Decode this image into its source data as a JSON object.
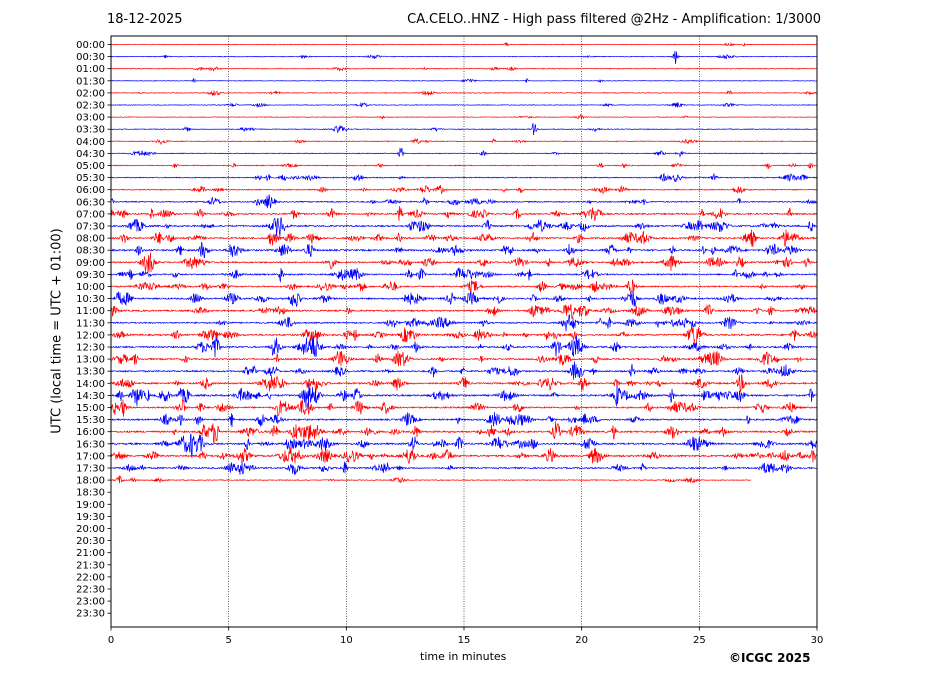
{
  "header": {
    "date": "18-12-2025",
    "title": "CA.CELO..HNZ - High pass filtered @2Hz - Amplification: 1/3000"
  },
  "footer": {
    "copyright": "©ICGC 2025"
  },
  "chart_data": {
    "type": "line",
    "chart_kind": "seismogram helicorder",
    "xlabel": "time in minutes",
    "ylabel": "UTC (local time = UTC + 01:00)",
    "xlim": [
      0,
      30
    ],
    "x_ticks": [
      0,
      5,
      10,
      15,
      20,
      25,
      30
    ],
    "vertical_gridlines_at": [
      5,
      10,
      15,
      20,
      25
    ],
    "y_tick_labels": [
      "00:00",
      "00:30",
      "01:00",
      "01:30",
      "02:00",
      "02:30",
      "03:00",
      "03:30",
      "04:00",
      "04:30",
      "05:00",
      "05:30",
      "06:00",
      "06:30",
      "07:00",
      "07:30",
      "08:00",
      "08:30",
      "09:00",
      "09:30",
      "10:00",
      "10:30",
      "11:00",
      "11:30",
      "12:00",
      "12:30",
      "13:00",
      "13:30",
      "14:00",
      "14:30",
      "15:00",
      "15:30",
      "16:00",
      "16:30",
      "17:00",
      "17:30",
      "18:00",
      "18:30",
      "19:00",
      "19:30",
      "20:00",
      "20:30",
      "21:00",
      "21:30",
      "22:00",
      "22:30",
      "23:00",
      "23:30"
    ],
    "trace_colors": [
      "#ff0000",
      "#0000ff"
    ],
    "last_trace_end_minute": 27.2,
    "series": [
      {
        "start": "00:00",
        "activity": 0.03,
        "end_minute": 30
      },
      {
        "start": "00:30",
        "activity": 0.08,
        "end_minute": 30
      },
      {
        "start": "01:00",
        "activity": 0.1,
        "end_minute": 30
      },
      {
        "start": "01:30",
        "activity": 0.04,
        "end_minute": 30
      },
      {
        "start": "02:00",
        "activity": 0.1,
        "end_minute": 30
      },
      {
        "start": "02:30",
        "activity": 0.1,
        "end_minute": 30
      },
      {
        "start": "03:00",
        "activity": 0.04,
        "end_minute": 30
      },
      {
        "start": "03:30",
        "activity": 0.12,
        "end_minute": 30
      },
      {
        "start": "04:00",
        "activity": 0.12,
        "end_minute": 30
      },
      {
        "start": "04:30",
        "activity": 0.14,
        "end_minute": 30
      },
      {
        "start": "05:00",
        "activity": 0.2,
        "end_minute": 30
      },
      {
        "start": "05:30",
        "activity": 0.25,
        "end_minute": 30
      },
      {
        "start": "06:00",
        "activity": 0.28,
        "end_minute": 30
      },
      {
        "start": "06:30",
        "activity": 0.35,
        "end_minute": 30
      },
      {
        "start": "07:00",
        "activity": 0.5,
        "end_minute": 30
      },
      {
        "start": "07:30",
        "activity": 0.55,
        "end_minute": 30
      },
      {
        "start": "08:00",
        "activity": 0.6,
        "end_minute": 30
      },
      {
        "start": "08:30",
        "activity": 0.6,
        "end_minute": 30
      },
      {
        "start": "09:00",
        "activity": 0.55,
        "end_minute": 30
      },
      {
        "start": "09:30",
        "activity": 0.5,
        "end_minute": 30
      },
      {
        "start": "10:00",
        "activity": 0.5,
        "end_minute": 30
      },
      {
        "start": "10:30",
        "activity": 0.55,
        "end_minute": 30
      },
      {
        "start": "11:00",
        "activity": 0.55,
        "end_minute": 30
      },
      {
        "start": "11:30",
        "activity": 0.5,
        "end_minute": 30
      },
      {
        "start": "12:00",
        "activity": 0.6,
        "end_minute": 30
      },
      {
        "start": "12:30",
        "activity": 0.6,
        "end_minute": 30
      },
      {
        "start": "13:00",
        "activity": 0.55,
        "end_minute": 30
      },
      {
        "start": "13:30",
        "activity": 0.55,
        "end_minute": 30
      },
      {
        "start": "14:00",
        "activity": 0.6,
        "end_minute": 30
      },
      {
        "start": "14:30",
        "activity": 0.7,
        "end_minute": 30
      },
      {
        "start": "15:00",
        "activity": 0.55,
        "end_minute": 30
      },
      {
        "start": "15:30",
        "activity": 0.55,
        "end_minute": 30
      },
      {
        "start": "16:00",
        "activity": 0.65,
        "end_minute": 30
      },
      {
        "start": "16:30",
        "activity": 0.65,
        "end_minute": 30
      },
      {
        "start": "17:00",
        "activity": 0.65,
        "end_minute": 30
      },
      {
        "start": "17:30",
        "activity": 0.5,
        "end_minute": 30
      },
      {
        "start": "18:00",
        "activity": 0.15,
        "end_minute": 27.2
      }
    ]
  }
}
